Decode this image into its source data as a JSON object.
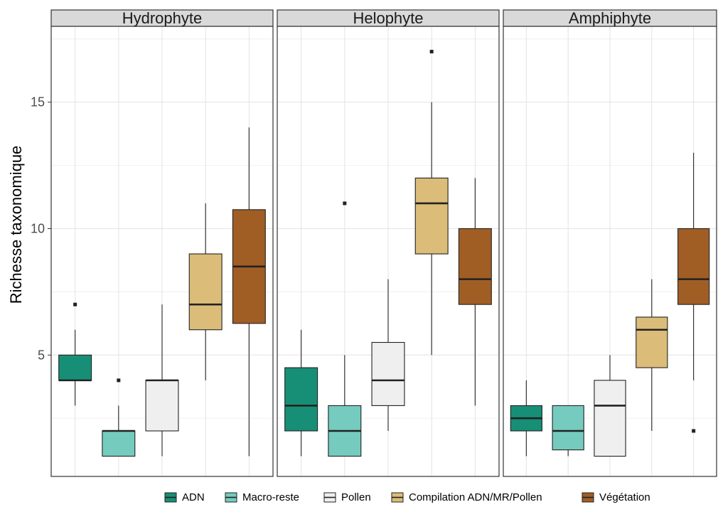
{
  "chart_data": {
    "type": "boxplot",
    "ylabel": "Richesse taxonomique",
    "xlabel": "",
    "ylim": [
      0.2,
      18
    ],
    "yticks": [
      5,
      10,
      15
    ],
    "grid": true,
    "legend_position": "bottom",
    "categories": [
      "ADN",
      "Macro-reste",
      "Pollen",
      "Compilation ADN/MR/Pollen",
      "Végétation"
    ],
    "colors": [
      "#178f76",
      "#75cbbe",
      "#efefef",
      "#dbbd79",
      "#a05e25"
    ],
    "panels": [
      {
        "name": "Hydrophyte",
        "boxes": [
          {
            "category": "ADN",
            "min": 3,
            "q1": 4,
            "median": 4,
            "q3": 5,
            "max": 6,
            "outliers": [
              7
            ]
          },
          {
            "category": "Macro-reste",
            "min": 1,
            "q1": 1,
            "median": 2,
            "q3": 2,
            "max": 3,
            "outliers": [
              4
            ]
          },
          {
            "category": "Pollen",
            "min": 1,
            "q1": 2,
            "median": 4,
            "q3": 4,
            "max": 7,
            "outliers": []
          },
          {
            "category": "Compilation ADN/MR/Pollen",
            "min": 4,
            "q1": 6,
            "median": 7,
            "q3": 9,
            "max": 11,
            "outliers": []
          },
          {
            "category": "Végétation",
            "min": 1,
            "q1": 6.25,
            "median": 8.5,
            "q3": 10.75,
            "max": 14,
            "outliers": []
          }
        ]
      },
      {
        "name": "Helophyte",
        "boxes": [
          {
            "category": "ADN",
            "min": 1,
            "q1": 2,
            "median": 3,
            "q3": 4.5,
            "max": 6,
            "outliers": []
          },
          {
            "category": "Macro-reste",
            "min": 1,
            "q1": 1,
            "median": 2,
            "q3": 3,
            "max": 5,
            "outliers": [
              11
            ]
          },
          {
            "category": "Pollen",
            "min": 2,
            "q1": 3,
            "median": 4,
            "q3": 5.5,
            "max": 8,
            "outliers": []
          },
          {
            "category": "Compilation ADN/MR/Pollen",
            "min": 5,
            "q1": 9,
            "median": 11,
            "q3": 12,
            "max": 15,
            "outliers": [
              17
            ]
          },
          {
            "category": "Végétation",
            "min": 3,
            "q1": 7,
            "median": 8,
            "q3": 10,
            "max": 12,
            "outliers": []
          }
        ]
      },
      {
        "name": "Amphiphyte",
        "boxes": [
          {
            "category": "ADN",
            "min": 1,
            "q1": 2,
            "median": 2.5,
            "q3": 3,
            "max": 4,
            "outliers": []
          },
          {
            "category": "Macro-reste",
            "min": 1,
            "q1": 1.25,
            "median": 2,
            "q3": 3,
            "max": 3,
            "outliers": []
          },
          {
            "category": "Pollen",
            "min": 1,
            "q1": 1,
            "median": 3,
            "q3": 4,
            "max": 5,
            "outliers": []
          },
          {
            "category": "Compilation ADN/MR/Pollen",
            "min": 2,
            "q1": 4.5,
            "median": 6,
            "q3": 6.5,
            "max": 8,
            "outliers": []
          },
          {
            "category": "Végétation",
            "min": 4,
            "q1": 7,
            "median": 8,
            "q3": 10,
            "max": 13,
            "outliers": [
              2
            ]
          }
        ]
      }
    ]
  }
}
